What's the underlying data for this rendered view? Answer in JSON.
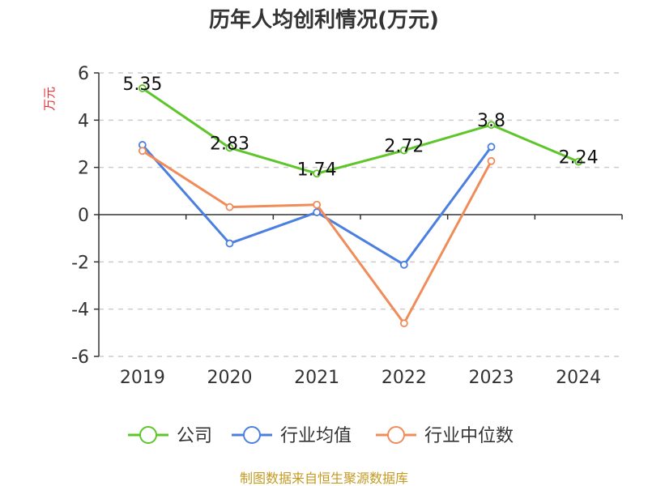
{
  "chart_data": {
    "type": "line",
    "title": "历年人均创利情况(万元)",
    "ylabel": "万元",
    "xlabel": "",
    "categories": [
      "2019",
      "2020",
      "2021",
      "2022",
      "2023",
      "2024"
    ],
    "ylim": [
      -6,
      6
    ],
    "yticks": [
      6,
      4,
      2,
      0,
      -2,
      -4,
      -6
    ],
    "grid": true,
    "legend_position": "bottom",
    "series": [
      {
        "name": "公司",
        "color": "#5ec52b",
        "values": [
          5.35,
          2.83,
          1.74,
          2.72,
          3.8,
          2.24
        ],
        "labels": [
          "5.35",
          "2.83",
          "1.74",
          "2.72",
          "3.8",
          "2.24"
        ]
      },
      {
        "name": "行业均值",
        "color": "#4b7fe0",
        "values": [
          2.95,
          -1.22,
          0.1,
          -2.12,
          2.87,
          null
        ]
      },
      {
        "name": "行业中位数",
        "color": "#f08c5a",
        "values": [
          2.7,
          0.32,
          0.42,
          -4.6,
          2.27,
          null
        ]
      }
    ]
  },
  "source_text": "制图数据来自恒生聚源数据库",
  "colors": {
    "source": "#c49a22",
    "ylabel": "#e03030",
    "grid": "#cccccc",
    "axis": "#333333"
  }
}
